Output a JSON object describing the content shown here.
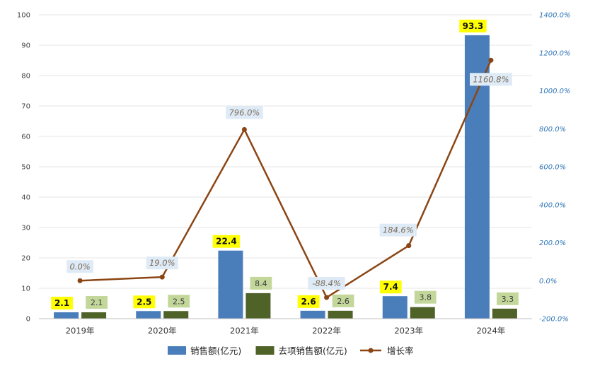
{
  "colors": {
    "sales": "#4a7ebb",
    "transferred": "#4f6228",
    "growth": "#8b4513",
    "primary_label_bg": "#ffff00",
    "secondary_label_bg": "#c4d79b",
    "growth_label_bg": "#deebf7",
    "right_axis_text": "#2e75b6",
    "grid": "#e6e6e6"
  },
  "chart_data": {
    "type": "bar",
    "categories": [
      "2019年",
      "2020年",
      "2021年",
      "2022年",
      "2023年",
      "2024年"
    ],
    "series": [
      {
        "name": "销售额(亿元)",
        "kind": "bar",
        "axis": "left",
        "values": [
          2.1,
          2.5,
          22.4,
          2.6,
          7.4,
          93.3
        ],
        "labels": [
          "2.1",
          "2.5",
          "22.4",
          "2.6",
          "7.4",
          "93.3"
        ]
      },
      {
        "name": "去项销售额(亿元)",
        "kind": "bar",
        "axis": "left",
        "values": [
          2.1,
          2.5,
          8.4,
          2.6,
          3.8,
          3.3
        ],
        "labels": [
          "2.1",
          "2.5",
          "8.4",
          "2.6",
          "3.8",
          "3.3"
        ]
      },
      {
        "name": "增长率",
        "kind": "line",
        "axis": "right",
        "values": [
          0.0,
          19.0,
          796.0,
          -88.4,
          184.6,
          1160.8
        ],
        "labels": [
          "0.0%",
          "19.0%",
          "796.0%",
          "-88.4%",
          "184.6%",
          "1160.8%"
        ]
      }
    ],
    "left_axis": {
      "ylim": [
        0,
        100
      ],
      "ticks": [
        "0",
        "10",
        "20",
        "30",
        "40",
        "50",
        "60",
        "70",
        "80",
        "90",
        "100"
      ]
    },
    "right_axis": {
      "ylim": [
        -200,
        1400
      ],
      "ticks": [
        "-200.0%",
        "0.0%",
        "200.0%",
        "400.0%",
        "600.0%",
        "800.0%",
        "1000.0%",
        "1200.0%",
        "1400.0%"
      ]
    },
    "title": "",
    "xlabel": "",
    "ylabel": "",
    "grid": true,
    "legend_position": "bottom"
  }
}
